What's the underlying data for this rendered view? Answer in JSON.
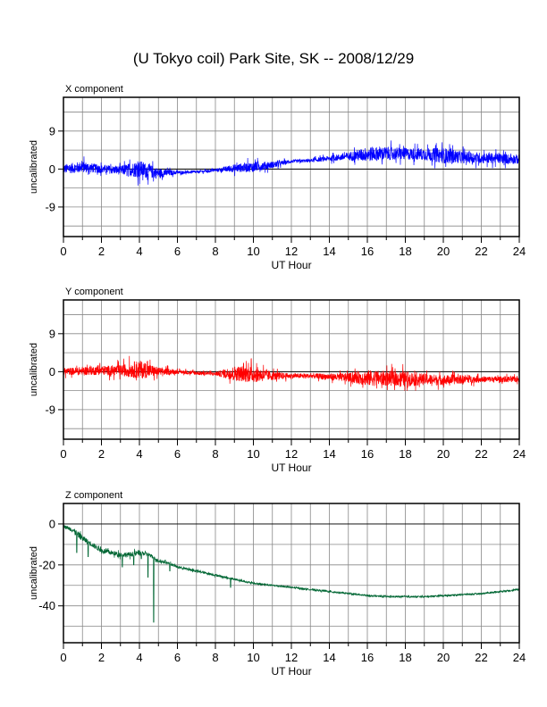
{
  "page": {
    "title": "(U Tokyo coil) Park Site, SK -- 2008/12/29"
  },
  "chart_data": [
    {
      "type": "line",
      "title": "X component",
      "xlabel": "UT Hour",
      "ylabel": "uncalibrated",
      "xlim": [
        0,
        24
      ],
      "ylim": [
        -16,
        17
      ],
      "xticks": [
        0,
        2,
        4,
        6,
        8,
        10,
        12,
        14,
        16,
        18,
        20,
        22,
        24
      ],
      "yticks": [
        -9,
        0,
        9
      ],
      "grid": true,
      "series": [
        {
          "color": "#0000ff",
          "x": [
            0,
            1,
            2,
            3,
            4,
            5,
            6,
            7,
            8,
            9,
            10,
            11,
            12,
            13,
            14,
            15,
            16,
            17,
            18,
            19,
            20,
            21,
            22,
            23,
            24
          ],
          "values": [
            0,
            0.5,
            0,
            -0.3,
            0,
            -1,
            -0.8,
            -0.7,
            -0.3,
            0.2,
            0.5,
            1,
            1.8,
            2,
            2.5,
            3,
            3.5,
            3.7,
            3.6,
            3.5,
            3.2,
            2.8,
            2.6,
            2.5,
            2.3
          ],
          "noise": [
            1.4,
            1.7,
            1.2,
            1.3,
            2.6,
            1.5,
            0.5,
            0.4,
            0.4,
            1.2,
            1.5,
            1,
            0.5,
            0.5,
            0.8,
            1.2,
            2.2,
            2,
            1.8,
            1.8,
            2.3,
            1.8,
            1.6,
            1.5,
            1.4
          ]
        }
      ]
    },
    {
      "type": "line",
      "title": "Y component",
      "xlabel": "UT Hour",
      "ylabel": "uncalibrated",
      "xlim": [
        0,
        24
      ],
      "ylim": [
        -16,
        17
      ],
      "xticks": [
        0,
        2,
        4,
        6,
        8,
        10,
        12,
        14,
        16,
        18,
        20,
        22,
        24
      ],
      "yticks": [
        -9,
        0,
        9
      ],
      "grid": true,
      "series": [
        {
          "color": "#ff0000",
          "x": [
            0,
            1,
            2,
            3,
            4,
            5,
            6,
            7,
            8,
            9,
            10,
            11,
            12,
            13,
            14,
            15,
            16,
            17,
            18,
            19,
            20,
            21,
            22,
            23,
            24
          ],
          "values": [
            0,
            0.2,
            0.3,
            0.3,
            0.5,
            0,
            0,
            -0.3,
            -0.5,
            -0.4,
            -0.6,
            -1,
            -1,
            -1,
            -1.2,
            -1.4,
            -1.5,
            -1.6,
            -1.7,
            -1.8,
            -2,
            -1.8,
            -1.8,
            -1.8,
            -1.8
          ],
          "noise": [
            1,
            1.2,
            1.4,
            1.6,
            2.8,
            1.3,
            0.6,
            0.6,
            0.5,
            2.2,
            2.5,
            1.3,
            0.7,
            0.7,
            1,
            1.3,
            2.4,
            2.2,
            2.3,
            1.7,
            1.5,
            1.3,
            0.9,
            0.9,
            0.9
          ]
        }
      ]
    },
    {
      "type": "line",
      "title": "Z component",
      "xlabel": "UT Hour",
      "ylabel": "uncalibrated",
      "xlim": [
        0,
        24
      ],
      "ylim": [
        -58,
        10
      ],
      "xticks": [
        0,
        2,
        4,
        6,
        8,
        10,
        12,
        14,
        16,
        18,
        20,
        22,
        24
      ],
      "yticks": [
        -40,
        -20,
        0
      ],
      "grid": true,
      "series": [
        {
          "color": "#006633",
          "x": [
            0,
            0.5,
            1,
            1.5,
            2,
            2.5,
            3,
            3.5,
            4,
            4.5,
            5,
            5.5,
            6,
            7,
            8,
            9,
            10,
            11,
            12,
            13,
            14,
            15,
            16,
            17,
            18,
            19,
            20,
            21,
            22,
            23,
            24
          ],
          "values": [
            -1,
            -3,
            -7,
            -10,
            -13,
            -14,
            -15,
            -15,
            -14,
            -15,
            -18,
            -19,
            -21,
            -23,
            -25,
            -27,
            -29,
            -30,
            -31,
            -32,
            -33,
            -34,
            -35,
            -35.5,
            -35.5,
            -35.5,
            -35,
            -34.5,
            -34,
            -33,
            -32
          ],
          "noise": [
            0.8,
            1.5,
            2,
            1.5,
            1.5,
            1.5,
            1.5,
            1.5,
            1.5,
            1.2,
            1,
            0.8,
            0.8,
            0.7,
            0.7,
            0.6,
            0.6,
            0.5,
            0.5,
            0.5,
            0.5,
            0.5,
            0.5,
            0.5,
            0.5,
            0.5,
            0.5,
            0.5,
            0.5,
            0.5,
            0.5
          ],
          "spikes": [
            {
              "x": 0.7,
              "value": -14
            },
            {
              "x": 1.3,
              "value": -16
            },
            {
              "x": 3.1,
              "value": -21
            },
            {
              "x": 3.7,
              "value": -20
            },
            {
              "x": 4.1,
              "value": -17
            },
            {
              "x": 4.45,
              "value": -26
            },
            {
              "x": 4.75,
              "value": -48
            },
            {
              "x": 5.6,
              "value": -23
            },
            {
              "x": 8.8,
              "value": -31
            }
          ]
        }
      ]
    }
  ]
}
